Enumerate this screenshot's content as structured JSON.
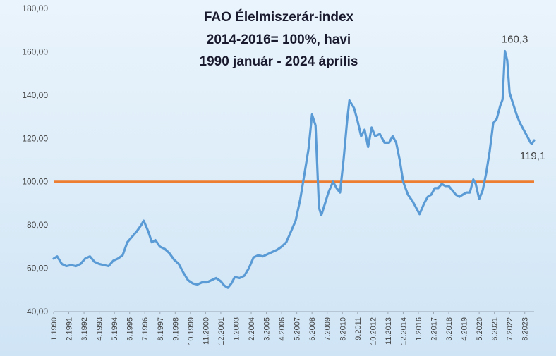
{
  "chart_data": {
    "type": "line",
    "title": [
      "FAO Élelmiszerár-index",
      "2014-2016= 100%, havi",
      "1990 január  - 2024 április"
    ],
    "ylim": [
      40,
      180
    ],
    "yticks": [
      "40,00",
      "60,00",
      "80,00",
      "100,00",
      "120,00",
      "140,00",
      "160,00",
      "180,00"
    ],
    "xtick_labels": [
      "1.1990",
      "2.1991",
      "3.1992",
      "4.1993",
      "5.1994",
      "6.1995",
      "7.1996",
      "8.1997",
      "9.1998",
      "10.1999",
      "11.2000",
      "12.2001",
      "1.2003",
      "2.2004",
      "3.2005",
      "4.2006",
      "5.2007",
      "6.2008",
      "7.2009",
      "8.2010",
      "9.2011",
      "10.2012",
      "11.2013",
      "12.2014",
      "1.2016",
      "2.2017",
      "3.2018",
      "4.2019",
      "5.2020",
      "6.2021",
      "7.2022",
      "8.2023"
    ],
    "grid": false,
    "reference_line": {
      "value": 100,
      "color": "#ed7d31"
    },
    "annotations": [
      {
        "text": "160,3",
        "date": "2022-03",
        "value": 160.3
      },
      {
        "text": "119,1",
        "date": "2024-04",
        "value": 119.1
      }
    ],
    "series": [
      {
        "color": "#5b9bd5",
        "start": "1990-01",
        "end": "2024-04",
        "points": [
          [
            "1990-01",
            64.5
          ],
          [
            "1990-04",
            65.5
          ],
          [
            "1990-08",
            62
          ],
          [
            "1990-12",
            61
          ],
          [
            "1991-04",
            61.5
          ],
          [
            "1991-08",
            61
          ],
          [
            "1991-12",
            62
          ],
          [
            "1992-04",
            64.5
          ],
          [
            "1992-08",
            65.5
          ],
          [
            "1992-12",
            63
          ],
          [
            "1993-04",
            62
          ],
          [
            "1993-08",
            61.5
          ],
          [
            "1993-12",
            61
          ],
          [
            "1994-04",
            63.5
          ],
          [
            "1994-08",
            64.5
          ],
          [
            "1994-12",
            66
          ],
          [
            "1995-04",
            72
          ],
          [
            "1995-08",
            74.5
          ],
          [
            "1995-12",
            77
          ],
          [
            "1996-04",
            80
          ],
          [
            "1996-06",
            82
          ],
          [
            "1996-10",
            77
          ],
          [
            "1997-01",
            72
          ],
          [
            "1997-04",
            73
          ],
          [
            "1997-08",
            70
          ],
          [
            "1997-12",
            69
          ],
          [
            "1998-04",
            67
          ],
          [
            "1998-08",
            64
          ],
          [
            "1998-12",
            62
          ],
          [
            "1999-04",
            58
          ],
          [
            "1999-08",
            54.5
          ],
          [
            "1999-12",
            53
          ],
          [
            "2000-04",
            52.5
          ],
          [
            "2000-08",
            53.5
          ],
          [
            "2000-12",
            53.5
          ],
          [
            "2001-04",
            54.5
          ],
          [
            "2001-08",
            55.5
          ],
          [
            "2001-12",
            54
          ],
          [
            "2002-03",
            52
          ],
          [
            "2002-06",
            51
          ],
          [
            "2002-09",
            53
          ],
          [
            "2002-12",
            56
          ],
          [
            "2003-04",
            55.5
          ],
          [
            "2003-08",
            56.5
          ],
          [
            "2003-12",
            60
          ],
          [
            "2004-04",
            65
          ],
          [
            "2004-08",
            66
          ],
          [
            "2004-12",
            65.5
          ],
          [
            "2005-04",
            66.5
          ],
          [
            "2005-08",
            67.5
          ],
          [
            "2005-12",
            68.5
          ],
          [
            "2006-04",
            70
          ],
          [
            "2006-08",
            72
          ],
          [
            "2006-12",
            77
          ],
          [
            "2007-04",
            82
          ],
          [
            "2007-08",
            92
          ],
          [
            "2007-12",
            105
          ],
          [
            "2008-03",
            115
          ],
          [
            "2008-06",
            131
          ],
          [
            "2008-09",
            126
          ],
          [
            "2008-12",
            88
          ],
          [
            "2009-02",
            84.5
          ],
          [
            "2009-04",
            88
          ],
          [
            "2009-08",
            95
          ],
          [
            "2009-12",
            100
          ],
          [
            "2010-03",
            97
          ],
          [
            "2010-06",
            95
          ],
          [
            "2010-09",
            110
          ],
          [
            "2010-12",
            128
          ],
          [
            "2011-02",
            137.5
          ],
          [
            "2011-06",
            134
          ],
          [
            "2011-09",
            128
          ],
          [
            "2011-12",
            121
          ],
          [
            "2012-03",
            124
          ],
          [
            "2012-06",
            116
          ],
          [
            "2012-09",
            125
          ],
          [
            "2012-12",
            121
          ],
          [
            "2013-04",
            122
          ],
          [
            "2013-08",
            118
          ],
          [
            "2013-12",
            118
          ],
          [
            "2014-03",
            121
          ],
          [
            "2014-06",
            118
          ],
          [
            "2014-09",
            110
          ],
          [
            "2014-12",
            100
          ],
          [
            "2015-04",
            94
          ],
          [
            "2015-08",
            91
          ],
          [
            "2015-12",
            87
          ],
          [
            "2016-02",
            85
          ],
          [
            "2016-06",
            90
          ],
          [
            "2016-09",
            93
          ],
          [
            "2016-12",
            94
          ],
          [
            "2017-03",
            97
          ],
          [
            "2017-06",
            97
          ],
          [
            "2017-09",
            99
          ],
          [
            "2017-12",
            98
          ],
          [
            "2018-03",
            98
          ],
          [
            "2018-06",
            96
          ],
          [
            "2018-09",
            94
          ],
          [
            "2018-12",
            93
          ],
          [
            "2019-03",
            94
          ],
          [
            "2019-06",
            95
          ],
          [
            "2019-09",
            95
          ],
          [
            "2019-12",
            101
          ],
          [
            "2020-02",
            99
          ],
          [
            "2020-05",
            92
          ],
          [
            "2020-08",
            96
          ],
          [
            "2020-11",
            104
          ],
          [
            "2021-02",
            114
          ],
          [
            "2021-05",
            127
          ],
          [
            "2021-08",
            129
          ],
          [
            "2021-11",
            135
          ],
          [
            "2022-01",
            138
          ],
          [
            "2022-03",
            160.3
          ],
          [
            "2022-05",
            156
          ],
          [
            "2022-07",
            141
          ],
          [
            "2022-10",
            136
          ],
          [
            "2023-01",
            131
          ],
          [
            "2023-04",
            127
          ],
          [
            "2023-07",
            124
          ],
          [
            "2023-10",
            121
          ],
          [
            "2024-01",
            118
          ],
          [
            "2024-02",
            117.5
          ],
          [
            "2024-04",
            119.1
          ]
        ]
      }
    ]
  }
}
